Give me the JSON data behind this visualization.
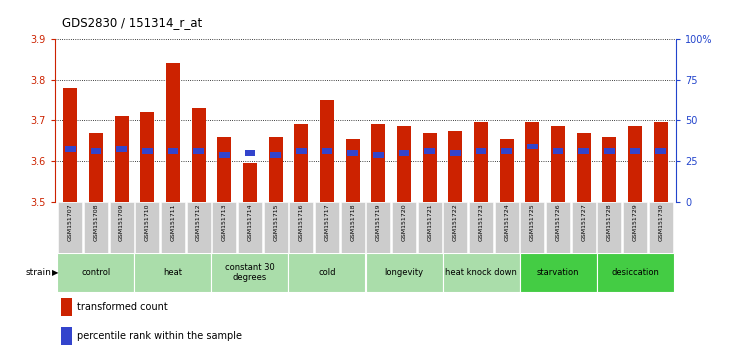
{
  "title": "GDS2830 / 151314_r_at",
  "samples": [
    "GSM151707",
    "GSM151708",
    "GSM151709",
    "GSM151710",
    "GSM151711",
    "GSM151712",
    "GSM151713",
    "GSM151714",
    "GSM151715",
    "GSM151716",
    "GSM151717",
    "GSM151718",
    "GSM151719",
    "GSM151720",
    "GSM151721",
    "GSM151722",
    "GSM151723",
    "GSM151724",
    "GSM151725",
    "GSM151726",
    "GSM151727",
    "GSM151728",
    "GSM151729",
    "GSM151730"
  ],
  "red_values": [
    3.78,
    3.67,
    3.71,
    3.72,
    3.84,
    3.73,
    3.66,
    3.595,
    3.66,
    3.69,
    3.75,
    3.655,
    3.69,
    3.685,
    3.67,
    3.675,
    3.695,
    3.655,
    3.695,
    3.685,
    3.67,
    3.66,
    3.685,
    3.695
  ],
  "blue_values": [
    3.63,
    3.625,
    3.63,
    3.625,
    3.625,
    3.625,
    3.615,
    3.62,
    3.615,
    3.625,
    3.625,
    3.62,
    3.615,
    3.62,
    3.625,
    3.62,
    3.625,
    3.625,
    3.635,
    3.625,
    3.625,
    3.625,
    3.625,
    3.625
  ],
  "ylim_left": [
    3.5,
    3.9
  ],
  "ylim_right": [
    0,
    100
  ],
  "yticks_left": [
    3.5,
    3.6,
    3.7,
    3.8,
    3.9
  ],
  "yticks_right": [
    0,
    25,
    50,
    75,
    100
  ],
  "ytick_labels_right": [
    "0",
    "25",
    "50",
    "75",
    "100%"
  ],
  "groups": [
    {
      "label": "control",
      "start": 0,
      "end": 2,
      "light": true
    },
    {
      "label": "heat",
      "start": 3,
      "end": 5,
      "light": true
    },
    {
      "label": "constant 30\ndegrees",
      "start": 6,
      "end": 8,
      "light": true
    },
    {
      "label": "cold",
      "start": 9,
      "end": 11,
      "light": true
    },
    {
      "label": "longevity",
      "start": 12,
      "end": 14,
      "light": true
    },
    {
      "label": "heat knock down",
      "start": 15,
      "end": 17,
      "light": true
    },
    {
      "label": "starvation",
      "start": 18,
      "end": 20,
      "light": false
    },
    {
      "label": "desiccation",
      "start": 21,
      "end": 23,
      "light": false
    }
  ],
  "bar_width": 0.55,
  "red_color": "#cc2200",
  "blue_color": "#3344cc",
  "baseline": 3.5,
  "group_color_light": "#aaddaa",
  "group_color_dark": "#44cc44",
  "tick_bg_color": "#cccccc",
  "left_axis_color": "#cc2200",
  "right_axis_color": "#2244cc"
}
